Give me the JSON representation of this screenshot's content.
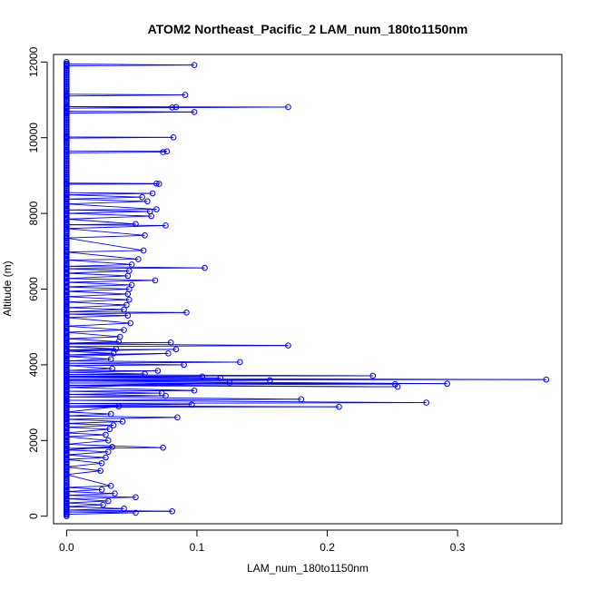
{
  "chart_data": {
    "type": "scatter",
    "title": "ATOM2 Northeast_Pacific_2 LAM_num_180to1150nm",
    "xlabel": "LAM_num_180to1150nm",
    "ylabel": "Altitude (m)",
    "xlim": [
      -0.01,
      0.38
    ],
    "ylim": [
      -200,
      12200
    ],
    "xticks": [
      0.0,
      0.1,
      0.2,
      0.3
    ],
    "xtick_labels": [
      "0.0",
      "0.1",
      "0.2",
      "0.3"
    ],
    "yticks": [
      0,
      2000,
      4000,
      6000,
      8000,
      10000,
      12000
    ],
    "ytick_labels": [
      "0",
      "2000",
      "4000",
      "6000",
      "8000",
      "10000",
      "12000"
    ],
    "grid": false,
    "colors": {
      "series": "#0000ff",
      "axis": "#000000"
    },
    "series": [
      {
        "marker": "open-circle",
        "connected": true,
        "points": [
          [
            0.0,
            11950
          ],
          [
            0.098,
            11920
          ],
          [
            0.0,
            11900
          ],
          [
            0.0,
            11150
          ],
          [
            0.091,
            11130
          ],
          [
            0.0,
            11100
          ],
          [
            0.0,
            10820
          ],
          [
            0.081,
            10800
          ],
          [
            0.084,
            10810
          ],
          [
            0.0,
            10820
          ],
          [
            0.17,
            10810
          ],
          [
            0.0,
            10780
          ],
          [
            0.0,
            10700
          ],
          [
            0.098,
            10680
          ],
          [
            0.0,
            10650
          ],
          [
            0.0,
            10020
          ],
          [
            0.082,
            10010
          ],
          [
            0.0,
            9990
          ],
          [
            0.0,
            9650
          ],
          [
            0.077,
            9640
          ],
          [
            0.074,
            9620
          ],
          [
            0.0,
            9600
          ],
          [
            0.0,
            8800
          ],
          [
            0.069,
            8790
          ],
          [
            0.071,
            8780
          ],
          [
            0.0,
            8770
          ],
          [
            0.0,
            8550
          ],
          [
            0.066,
            8530
          ],
          [
            0.0,
            8490
          ],
          [
            0.058,
            8430
          ],
          [
            0.0,
            8380
          ],
          [
            0.062,
            8320
          ],
          [
            0.0,
            8250
          ],
          [
            0.069,
            8110
          ],
          [
            0.0,
            8090
          ],
          [
            0.064,
            8050
          ],
          [
            0.0,
            8000
          ],
          [
            0.065,
            7930
          ],
          [
            0.0,
            7850
          ],
          [
            0.053,
            7720
          ],
          [
            0.0,
            7700
          ],
          [
            0.076,
            7680
          ],
          [
            0.0,
            7600
          ],
          [
            0.06,
            7420
          ],
          [
            0.0,
            7350
          ],
          [
            0.059,
            7020
          ],
          [
            0.0,
            6980
          ],
          [
            0.055,
            6790
          ],
          [
            0.0,
            6770
          ],
          [
            0.05,
            6650
          ],
          [
            0.0,
            6600
          ],
          [
            0.106,
            6560
          ],
          [
            0.0,
            6540
          ],
          [
            0.048,
            6480
          ],
          [
            0.0,
            6420
          ],
          [
            0.047,
            6350
          ],
          [
            0.0,
            6280
          ],
          [
            0.068,
            6230
          ],
          [
            0.0,
            6180
          ],
          [
            0.05,
            6110
          ],
          [
            0.0,
            6060
          ],
          [
            0.048,
            6000
          ],
          [
            0.0,
            5940
          ],
          [
            0.047,
            5870
          ],
          [
            0.0,
            5800
          ],
          [
            0.048,
            5720
          ],
          [
            0.0,
            5660
          ],
          [
            0.046,
            5580
          ],
          [
            0.0,
            5510
          ],
          [
            0.044,
            5460
          ],
          [
            0.0,
            5400
          ],
          [
            0.092,
            5380
          ],
          [
            0.0,
            5340
          ],
          [
            0.047,
            5300
          ],
          [
            0.0,
            5250
          ],
          [
            0.049,
            5100
          ],
          [
            0.0,
            5020
          ],
          [
            0.044,
            4920
          ],
          [
            0.0,
            4860
          ],
          [
            0.041,
            4740
          ],
          [
            0.0,
            4690
          ],
          [
            0.04,
            4610
          ],
          [
            0.0,
            4570
          ],
          [
            0.08,
            4590
          ],
          [
            0.0,
            4550
          ],
          [
            0.17,
            4510
          ],
          [
            0.0,
            4480
          ],
          [
            0.038,
            4420
          ],
          [
            0.0,
            4390
          ],
          [
            0.084,
            4410
          ],
          [
            0.0,
            4360
          ],
          [
            0.036,
            4300
          ],
          [
            0.0,
            4260
          ],
          [
            0.078,
            4300
          ],
          [
            0.0,
            4220
          ],
          [
            0.034,
            4150
          ],
          [
            0.0,
            4100
          ],
          [
            0.133,
            4070
          ],
          [
            0.0,
            4040
          ],
          [
            0.09,
            4000
          ],
          [
            0.0,
            3980
          ],
          [
            0.035,
            3900
          ],
          [
            0.0,
            3850
          ],
          [
            0.07,
            3840
          ],
          [
            0.0,
            3800
          ],
          [
            0.06,
            3760
          ],
          [
            0.0,
            3740
          ],
          [
            0.235,
            3710
          ],
          [
            0.0,
            3700
          ],
          [
            0.104,
            3690
          ],
          [
            0.0,
            3680
          ],
          [
            0.118,
            3650
          ],
          [
            0.0,
            3640
          ],
          [
            0.368,
            3610
          ],
          [
            0.0,
            3600
          ],
          [
            0.156,
            3590
          ],
          [
            0.0,
            3570
          ],
          [
            0.292,
            3500
          ],
          [
            0.0,
            3520
          ],
          [
            0.252,
            3490
          ],
          [
            0.0,
            3460
          ],
          [
            0.254,
            3420
          ],
          [
            0.0,
            3450
          ],
          [
            0.125,
            3530
          ],
          [
            0.0,
            3400
          ],
          [
            0.098,
            3320
          ],
          [
            0.0,
            3300
          ],
          [
            0.073,
            3250
          ],
          [
            0.0,
            3220
          ],
          [
            0.076,
            3180
          ],
          [
            0.0,
            3150
          ],
          [
            0.18,
            3090
          ],
          [
            0.0,
            3060
          ],
          [
            0.276,
            3000
          ],
          [
            0.0,
            2980
          ],
          [
            0.096,
            2950
          ],
          [
            0.0,
            2920
          ],
          [
            0.209,
            2890
          ],
          [
            0.0,
            2880
          ],
          [
            0.04,
            2900
          ],
          [
            0.0,
            2750
          ],
          [
            0.034,
            2700
          ],
          [
            0.0,
            2650
          ],
          [
            0.085,
            2610
          ],
          [
            0.0,
            2560
          ],
          [
            0.043,
            2500
          ],
          [
            0.0,
            2450
          ],
          [
            0.036,
            2400
          ],
          [
            0.0,
            2350
          ],
          [
            0.033,
            2300
          ],
          [
            0.0,
            2200
          ],
          [
            0.03,
            2150
          ],
          [
            0.0,
            2100
          ],
          [
            0.032,
            2000
          ],
          [
            0.0,
            1900
          ],
          [
            0.074,
            1810
          ],
          [
            0.0,
            1790
          ],
          [
            0.035,
            1830
          ],
          [
            0.0,
            1750
          ],
          [
            0.032,
            1700
          ],
          [
            0.0,
            1620
          ],
          [
            0.03,
            1550
          ],
          [
            0.0,
            1500
          ],
          [
            0.027,
            1400
          ],
          [
            0.0,
            1300
          ],
          [
            0.026,
            1200
          ],
          [
            0.0,
            1100
          ],
          [
            0.034,
            800
          ],
          [
            0.0,
            760
          ],
          [
            0.027,
            700
          ],
          [
            0.0,
            650
          ],
          [
            0.037,
            600
          ],
          [
            0.0,
            550
          ],
          [
            0.053,
            500
          ],
          [
            0.0,
            460
          ],
          [
            0.032,
            400
          ],
          [
            0.0,
            350
          ],
          [
            0.028,
            300
          ],
          [
            0.0,
            250
          ],
          [
            0.044,
            200
          ],
          [
            0.0,
            160
          ],
          [
            0.081,
            130
          ],
          [
            0.0,
            110
          ],
          [
            0.053,
            90
          ],
          [
            0.0,
            50
          ]
        ]
      }
    ]
  }
}
